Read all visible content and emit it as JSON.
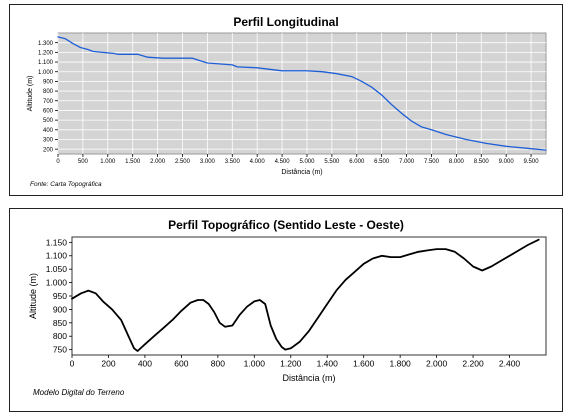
{
  "colors": {
    "plot_bg": "#d4d4d4",
    "grid": "#ffffff",
    "long_line": "#1f5fd6",
    "topo_line": "#000000"
  },
  "chart_data": [
    {
      "type": "line",
      "title": "Perfil Longitudinal",
      "xlabel": "Distância (m)",
      "ylabel": "Altitude (m)",
      "source": "Fonte: Carta Topográfica",
      "xlim": [
        0,
        9800
      ],
      "ylim": [
        150,
        1400
      ],
      "xticks": [
        0,
        500,
        1000,
        1500,
        2000,
        2500,
        3000,
        3500,
        4000,
        4500,
        5000,
        5500,
        6000,
        6500,
        7000,
        7500,
        8000,
        8500,
        9000,
        9500
      ],
      "xtick_labels": [
        "0",
        "500",
        "1.000",
        "1.500",
        "2.000",
        "2.500",
        "3.000",
        "3.500",
        "4.000",
        "4.500",
        "5.000",
        "5.500",
        "6.000",
        "6.500",
        "7.000",
        "7.500",
        "8.000",
        "8.500",
        "9.000",
        "9.500"
      ],
      "yticks": [
        200,
        300,
        400,
        500,
        600,
        700,
        800,
        900,
        1000,
        1100,
        1200,
        1300
      ],
      "ytick_labels": [
        "200",
        "300",
        "400",
        "500",
        "600",
        "700",
        "800",
        "900",
        "1.000",
        "1.100",
        "1.200",
        "1.300"
      ],
      "grid": true,
      "series": [
        {
          "x": [
            0,
            150,
            300,
            450,
            600,
            700,
            900,
            1100,
            1200,
            1600,
            1800,
            2100,
            2700,
            3000,
            3500,
            3600,
            4000,
            4500,
            5000,
            5300,
            5600,
            5900,
            6100,
            6300,
            6500,
            6700,
            6900,
            7100,
            7300,
            7500,
            7800,
            8200,
            8600,
            9000,
            9400,
            9800
          ],
          "y": [
            1360,
            1340,
            1290,
            1250,
            1230,
            1210,
            1200,
            1190,
            1180,
            1180,
            1150,
            1140,
            1140,
            1090,
            1070,
            1050,
            1040,
            1010,
            1010,
            1000,
            980,
            950,
            900,
            840,
            760,
            660,
            570,
            490,
            430,
            400,
            350,
            300,
            260,
            230,
            210,
            190
          ]
        }
      ]
    },
    {
      "type": "line",
      "title": "Perfil Topográfico (Sentido Leste - Oeste)",
      "xlabel": "Distância (m)",
      "ylabel": "Altitude (m)",
      "source": "Modelo Digital do Terreno",
      "xlim": [
        0,
        2600
      ],
      "ylim": [
        730,
        1170
      ],
      "xticks": [
        0,
        200,
        400,
        600,
        800,
        1000,
        1200,
        1400,
        1600,
        1800,
        2000,
        2200,
        2400
      ],
      "xtick_labels": [
        "0",
        "200",
        "400",
        "600",
        "800",
        "1.000",
        "1.200",
        "1.400",
        "1.600",
        "1.800",
        "2.000",
        "2.200",
        "2.400"
      ],
      "yticks": [
        750,
        800,
        850,
        900,
        950,
        1000,
        1050,
        1100,
        1150
      ],
      "ytick_labels": [
        "750",
        "800",
        "850",
        "900",
        "950",
        "1.000",
        "1.050",
        "1.100",
        "1.150"
      ],
      "grid": false,
      "series": [
        {
          "x": [
            0,
            50,
            90,
            130,
            170,
            220,
            270,
            310,
            340,
            360,
            400,
            450,
            500,
            550,
            600,
            650,
            690,
            720,
            750,
            780,
            810,
            840,
            880,
            920,
            960,
            1000,
            1030,
            1060,
            1090,
            1120,
            1150,
            1170,
            1200,
            1250,
            1300,
            1350,
            1400,
            1450,
            1500,
            1550,
            1600,
            1650,
            1700,
            1750,
            1800,
            1850,
            1900,
            1950,
            2000,
            2050,
            2100,
            2150,
            2200,
            2250,
            2300,
            2350,
            2400,
            2450,
            2500,
            2560
          ],
          "y": [
            940,
            960,
            970,
            960,
            930,
            900,
            860,
            800,
            755,
            745,
            770,
            800,
            830,
            860,
            895,
            925,
            935,
            935,
            920,
            890,
            850,
            835,
            840,
            880,
            910,
            930,
            935,
            920,
            840,
            790,
            760,
            750,
            755,
            780,
            820,
            870,
            920,
            970,
            1010,
            1040,
            1070,
            1090,
            1100,
            1095,
            1095,
            1105,
            1115,
            1120,
            1125,
            1125,
            1115,
            1090,
            1060,
            1045,
            1060,
            1080,
            1100,
            1120,
            1140,
            1160
          ]
        }
      ]
    }
  ]
}
